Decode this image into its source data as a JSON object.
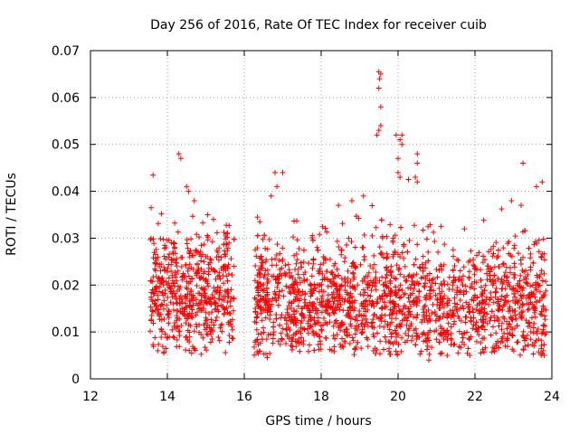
{
  "chart_data": {
    "type": "scatter",
    "title": "Day 256 of 2016, Rate Of TEC Index for receiver cuib",
    "xlabel": "GPS time / hours",
    "ylabel": "ROTI / TECUs",
    "xlim": [
      12,
      24
    ],
    "ylim": [
      0,
      0.07
    ],
    "xticks": [
      12,
      14,
      16,
      18,
      20,
      22,
      24
    ],
    "yticks": [
      0,
      0.01,
      0.02,
      0.03,
      0.04,
      0.05,
      0.06,
      0.07
    ],
    "xtick_labels": [
      "12",
      "14",
      "16",
      "18",
      "20",
      "22",
      "24"
    ],
    "ytick_labels": [
      "0",
      "0.01",
      "0.02",
      "0.03",
      "0.04",
      "0.05",
      "0.06",
      "0.07"
    ],
    "grid": true,
    "marker": "+",
    "color": "#ff0000",
    "segments": [
      {
        "start": 13.55,
        "end": 15.75,
        "base_mean": 0.018,
        "spread": 0.011
      },
      {
        "start": 16.25,
        "end": 23.85,
        "base_mean": 0.016,
        "spread": 0.011
      }
    ],
    "notable_points": [
      {
        "x": 14.3,
        "y": 0.048
      },
      {
        "x": 14.35,
        "y": 0.047
      },
      {
        "x": 14.5,
        "y": 0.041
      },
      {
        "x": 14.55,
        "y": 0.04
      },
      {
        "x": 14.7,
        "y": 0.038
      },
      {
        "x": 15.05,
        "y": 0.035
      },
      {
        "x": 15.2,
        "y": 0.034
      },
      {
        "x": 16.8,
        "y": 0.044
      },
      {
        "x": 17.0,
        "y": 0.044
      },
      {
        "x": 16.85,
        "y": 0.041
      },
      {
        "x": 16.7,
        "y": 0.039
      },
      {
        "x": 18.45,
        "y": 0.037
      },
      {
        "x": 18.8,
        "y": 0.038
      },
      {
        "x": 19.1,
        "y": 0.039
      },
      {
        "x": 19.5,
        "y": 0.0655
      },
      {
        "x": 19.52,
        "y": 0.064
      },
      {
        "x": 19.55,
        "y": 0.065
      },
      {
        "x": 19.5,
        "y": 0.062
      },
      {
        "x": 19.55,
        "y": 0.058
      },
      {
        "x": 19.45,
        "y": 0.052
      },
      {
        "x": 19.5,
        "y": 0.053
      },
      {
        "x": 19.55,
        "y": 0.054
      },
      {
        "x": 19.95,
        "y": 0.052
      },
      {
        "x": 20.05,
        "y": 0.051
      },
      {
        "x": 20.1,
        "y": 0.05
      },
      {
        "x": 20.1,
        "y": 0.052
      },
      {
        "x": 20.0,
        "y": 0.047
      },
      {
        "x": 20.0,
        "y": 0.044
      },
      {
        "x": 20.05,
        "y": 0.043
      },
      {
        "x": 20.5,
        "y": 0.048
      },
      {
        "x": 20.5,
        "y": 0.046
      },
      {
        "x": 20.45,
        "y": 0.043
      },
      {
        "x": 20.5,
        "y": 0.042
      },
      {
        "x": 22.95,
        "y": 0.038
      },
      {
        "x": 23.2,
        "y": 0.037
      },
      {
        "x": 23.25,
        "y": 0.046
      },
      {
        "x": 23.6,
        "y": 0.041
      },
      {
        "x": 23.75,
        "y": 0.042
      },
      {
        "x": 23.8,
        "y": 0.005
      },
      {
        "x": 23.78,
        "y": 0.006
      },
      {
        "x": 20.8,
        "y": 0.004
      },
      {
        "x": 16.6,
        "y": 0.0045
      },
      {
        "x": 13.75,
        "y": 0.006
      }
    ]
  }
}
